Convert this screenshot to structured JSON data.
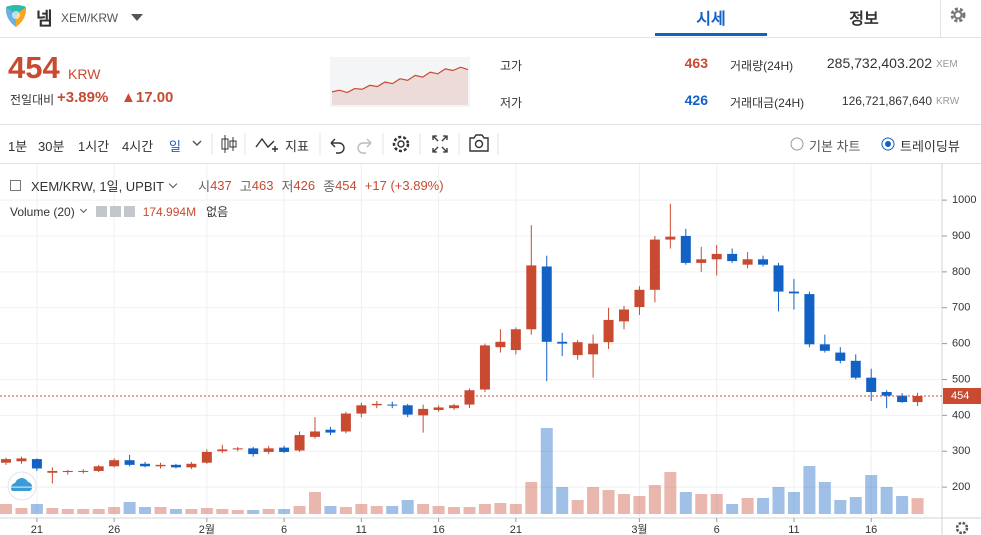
{
  "header": {
    "coin": "넴",
    "pair": "XEM/KRW",
    "tabs": [
      "시세",
      "정보"
    ],
    "price": 454,
    "price_unit": "KRW",
    "change_label": "전일대비",
    "change_pct": "+3.89%",
    "change_abs": "▲17.00",
    "high_label": "고가",
    "high": 463,
    "low_label": "저가",
    "low": 426,
    "volume_label": "거래량(24H)",
    "volume": "285,732,403.202",
    "volume_unit": "XEM",
    "turnover_label": "거래대금(24H)",
    "turnover": "126,721,867,640",
    "turnover_unit": "KRW"
  },
  "toolbar": {
    "intervals": [
      "1분",
      "30분",
      "1시간",
      "4시간",
      "일"
    ],
    "indicator": "지표",
    "chart_modes": [
      "기본 차트",
      "트레이딩뷰"
    ]
  },
  "chart_data": [
    {
      "type": "candlestick",
      "title": "XEM/KRW, 1일, UPBIT",
      "legend": {
        "labels": [
          "시",
          "고",
          "저",
          "종"
        ],
        "values": [
          437,
          463,
          426,
          454
        ],
        "change": "+17 (+3.89%)"
      },
      "categories": [
        null,
        null,
        "21",
        null,
        null,
        null,
        null,
        "26",
        null,
        null,
        null,
        null,
        null,
        "2월",
        null,
        null,
        null,
        null,
        "6",
        null,
        null,
        null,
        null,
        "11",
        null,
        null,
        null,
        null,
        "16",
        null,
        null,
        null,
        null,
        "21",
        null,
        null,
        null,
        null,
        null,
        null,
        null,
        "3월",
        null,
        null,
        null,
        null,
        "6",
        null,
        null,
        null,
        null,
        "11",
        null,
        null,
        null,
        null,
        "16",
        null,
        null,
        null
      ],
      "open": [
        268,
        272,
        278,
        240,
        242,
        243,
        245,
        258,
        275,
        265,
        258,
        262,
        255,
        268,
        300,
        305,
        308,
        298,
        310,
        302,
        340,
        360,
        355,
        405,
        428,
        430,
        428,
        400,
        415,
        420,
        430,
        472,
        590,
        582,
        640,
        815,
        605,
        568,
        570,
        604,
        662,
        702,
        750,
        890,
        900,
        825,
        835,
        850,
        820,
        835,
        818,
        745,
        738,
        598,
        575,
        552,
        505,
        465,
        455,
        437
      ],
      "high": [
        282,
        285,
        280,
        255,
        248,
        250,
        262,
        280,
        290,
        270,
        268,
        265,
        270,
        305,
        318,
        312,
        312,
        315,
        315,
        355,
        395,
        368,
        410,
        435,
        440,
        438,
        432,
        430,
        428,
        432,
        475,
        600,
        640,
        645,
        930,
        845,
        630,
        610,
        625,
        700,
        705,
        760,
        900,
        990,
        920,
        870,
        875,
        865,
        855,
        845,
        825,
        780,
        745,
        625,
        590,
        570,
        530,
        470,
        462,
        463
      ],
      "low": [
        262,
        265,
        245,
        210,
        235,
        238,
        242,
        255,
        258,
        255,
        252,
        252,
        250,
        265,
        295,
        300,
        285,
        292,
        295,
        298,
        335,
        345,
        350,
        395,
        420,
        420,
        395,
        352,
        410,
        415,
        420,
        465,
        575,
        570,
        625,
        495,
        565,
        555,
        505,
        585,
        640,
        680,
        715,
        865,
        820,
        800,
        790,
        825,
        810,
        815,
        690,
        695,
        590,
        575,
        545,
        500,
        440,
        420,
        435,
        426
      ],
      "close": [
        278,
        280,
        252,
        245,
        245,
        245,
        258,
        275,
        262,
        258,
        262,
        255,
        265,
        298,
        305,
        308,
        292,
        308,
        298,
        345,
        355,
        352,
        405,
        428,
        432,
        428,
        402,
        418,
        422,
        428,
        470,
        595,
        605,
        640,
        818,
        605,
        600,
        604,
        600,
        666,
        695,
        750,
        890,
        898,
        825,
        835,
        850,
        830,
        835,
        820,
        745,
        740,
        598,
        580,
        552,
        505,
        465,
        455,
        437,
        454
      ],
      "up_color": "#c84a31",
      "down_color": "#1261c4",
      "volume": {
        "name": "Volume (20)",
        "value_label": "174.994M",
        "extra": "없음",
        "ylim": [
          0,
          3730
        ],
        "values": [
          110,
          66,
          110,
          66,
          55,
          55,
          55,
          77,
          132,
          77,
          77,
          55,
          55,
          66,
          55,
          44,
          44,
          55,
          55,
          88,
          242,
          88,
          77,
          110,
          88,
          88,
          154,
          110,
          88,
          77,
          77,
          110,
          121,
          110,
          352,
          946,
          297,
          154,
          297,
          264,
          220,
          198,
          319,
          462,
          242,
          220,
          220,
          110,
          176,
          176,
          297,
          242,
          528,
          352,
          154,
          187,
          429,
          297,
          198,
          174.994
        ]
      },
      "ylim": [
        125,
        1070
      ],
      "yticks": [
        200,
        300,
        400,
        500,
        600,
        700,
        800,
        900,
        1000
      ],
      "grid": true
    },
    {
      "type": "area",
      "values": [
        420,
        425,
        418,
        430,
        428,
        440,
        436,
        450,
        445,
        460,
        455,
        470,
        465,
        480,
        475,
        490,
        485,
        495,
        488
      ],
      "ylim": [
        380,
        520
      ],
      "color": "#c84a31"
    }
  ]
}
